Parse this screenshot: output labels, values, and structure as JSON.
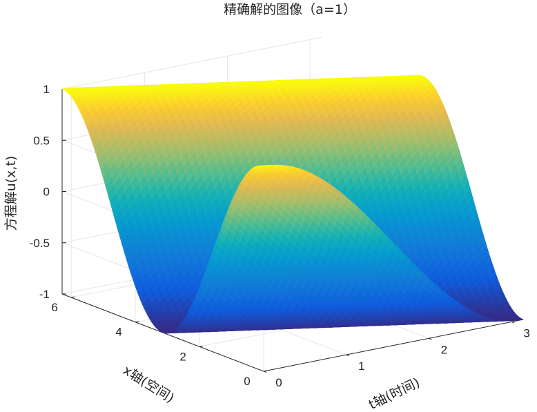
{
  "chart_data": {
    "type": "surface",
    "title": "精确解的图像（a=1）",
    "xlabel": "t轴(时间)",
    "ylabel": "x轴(空间)",
    "zlabel": "方程解u(x,t)",
    "function": "u(x,t) = cos(x + a*t), a = 1",
    "a": 1,
    "t_range": [
      0,
      3.14159
    ],
    "x_range": [
      0,
      6.28319
    ],
    "zlim": [
      -1,
      1
    ],
    "t_ticks": [
      0,
      1,
      2,
      3
    ],
    "x_ticks": [
      0,
      2,
      4,
      6
    ],
    "z_ticks": [
      -1,
      -0.5,
      0,
      0.5,
      1
    ],
    "t_tick_labels": [
      "0",
      "1",
      "2",
      "3"
    ],
    "x_tick_labels": [
      "0",
      "2",
      "4",
      "6"
    ],
    "z_tick_labels": [
      "-1",
      "-0.5",
      "0",
      "0.5",
      "1"
    ],
    "colormap": "parula",
    "grid": true,
    "box": false
  }
}
